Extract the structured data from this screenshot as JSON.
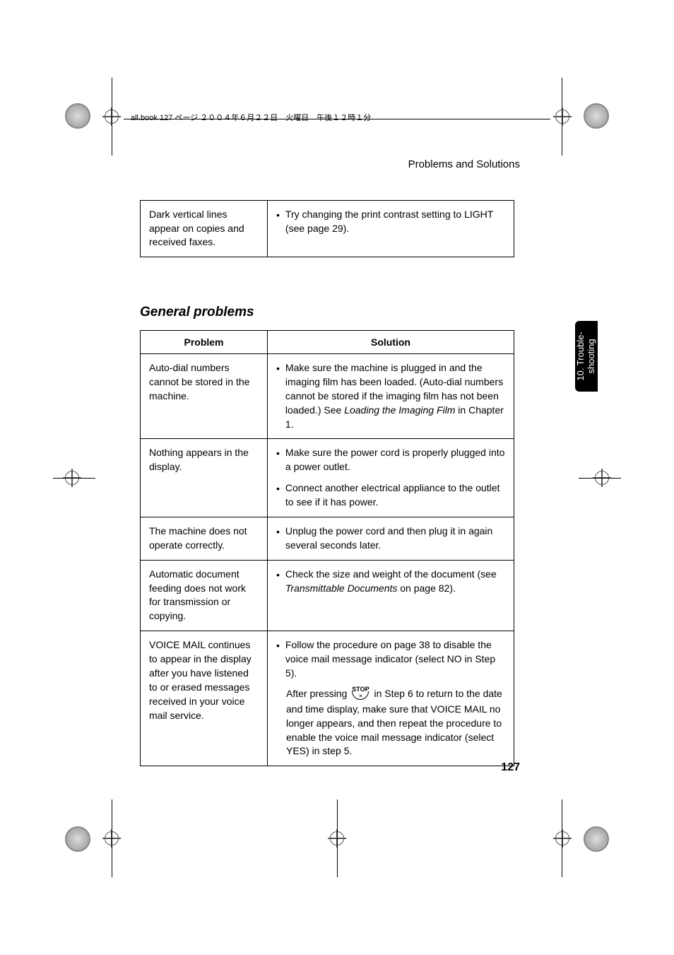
{
  "header_strip": "all.book  127 ページ  ２００４年６月２２日　火曜日　午後１２時１分",
  "page_header": "Problems and Solutions",
  "table1": {
    "rows": [
      {
        "problem": "Dark vertical lines appear on copies and received faxes.",
        "solution": "Try changing the print contrast setting to LIGHT (see page 29)."
      }
    ]
  },
  "section_title": "General problems",
  "table2": {
    "head_problem": "Problem",
    "head_solution": "Solution",
    "rows": [
      {
        "problem": "Auto-dial numbers cannot be stored in the machine.",
        "solutions": [
          {
            "prefix": "Make sure the machine is plugged in and the imaging film has been loaded. (Auto-dial numbers cannot be stored if the imaging film has not been loaded.) See ",
            "italic": "Loading the Imaging Film",
            "suffix": " in Chapter 1."
          }
        ]
      },
      {
        "problem": "Nothing appears in the display.",
        "solutions": [
          {
            "text": "Make sure the power cord is properly plugged into a power outlet."
          },
          {
            "text": "Connect another electrical appliance to the outlet to see if it has power."
          }
        ]
      },
      {
        "problem": "The machine does not operate correctly.",
        "solutions": [
          {
            "text": "Unplug the power cord and then plug it in again several seconds later."
          }
        ]
      },
      {
        "problem": "Automatic document feeding does not work for transmission or copying.",
        "solutions": [
          {
            "prefix": "Check the size and weight of the document (see ",
            "italic": "Transmittable Documents",
            "suffix": " on page 82)."
          }
        ]
      },
      {
        "problem": "VOICE MAIL continues to appear in the display after you have listened to or erased messages received in your voice mail service.",
        "solutions": [
          {
            "text": "Follow the procedure on page 38 to disable the voice mail message indicator (select NO in Step 5)."
          }
        ],
        "after_pre": "After pressing ",
        "stop_label": "STOP",
        "after_post": " in Step 6 to return to the date and time display, make sure that VOICE MAIL no longer appears, and then repeat the procedure to enable the voice mail message indicator (select YES) in step 5."
      }
    ]
  },
  "side_tab_line1": "10. Trouble-",
  "side_tab_line2": "shooting",
  "page_number": "127",
  "colors": {
    "text": "#000000",
    "bg": "#ffffff",
    "tab_bg": "#000000",
    "tab_fg": "#ffffff"
  }
}
